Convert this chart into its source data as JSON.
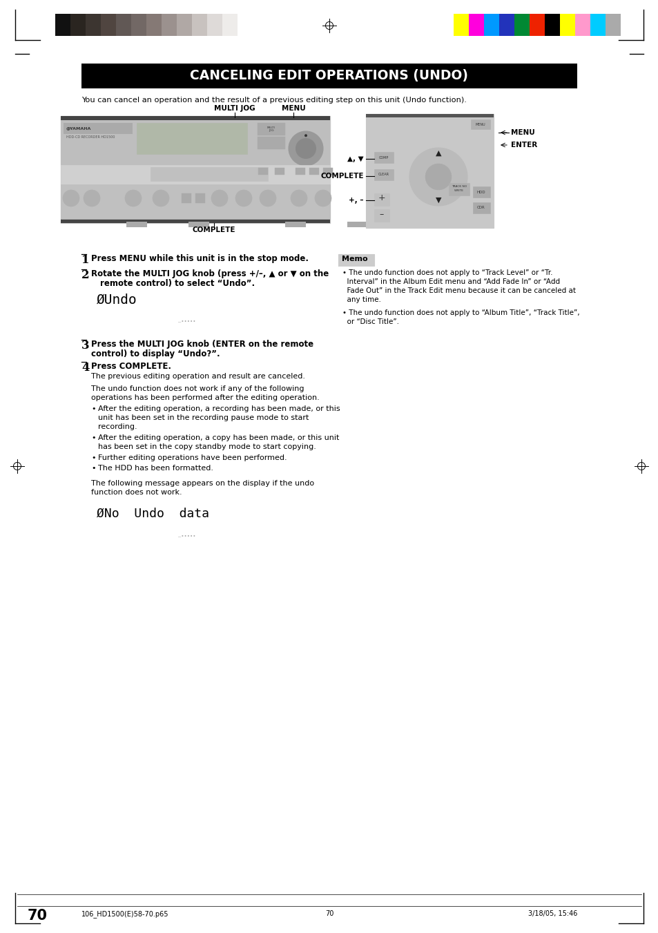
{
  "title": "CANCELING EDIT OPERATIONS (UNDO)",
  "bg_color": "#ffffff",
  "title_bg": "#000000",
  "title_fg": "#ffffff",
  "page_number": "70",
  "intro_text": "You can cancel an operation and the result of a previous editing step on this unit (Undo function).",
  "step1_bold": "Press MENU while this unit is in the stop mode.",
  "step2_bold1": "Rotate the MULTI JOG knob (press +/–, ▲ or ▼ on the",
  "step2_bold2": "remote control) to select “Undo”.",
  "step3_bold1": "Press the MULTI JOG knob (ENTER on the remote",
  "step3_bold2": "control) to display “Undo?”.",
  "step4_bold": "Press COMPLETE.",
  "step4_text1": "The previous editing operation and result are canceled.",
  "step4_text2a": "The undo function does not work if any of the following",
  "step4_text2b": "operations has been performed after the editing operation.",
  "bullet1a": "After the editing operation, a recording has been made, or this",
  "bullet1b": "unit has been set in the recording pause mode to start",
  "bullet1c": "recording.",
  "bullet2a": "After the editing operation, a copy has been made, or this unit",
  "bullet2b": "has been set in the copy standby mode to start copying.",
  "bullet3": "Further editing operations have been performed.",
  "bullet4": "The HDD has been formatted.",
  "step4_text3a": "The following message appears on the display if the undo",
  "step4_text3b": "function does not work.",
  "display1_text": "ØUndo",
  "display2_text": "ØNo  Undo  data",
  "memo_title": "Memo",
  "memo1a": "• The undo function does not apply to “Track Level” or “Tr.",
  "memo1b": "  Interval” in the Album Edit menu and “Add Fade In” or “Add",
  "memo1c": "  Fade Out” in the Track Edit menu because it can be canceled at",
  "memo1d": "  any time.",
  "memo2a": "• The undo function does not apply to “Album Title”, “Track Title”,",
  "memo2b": "  or “Disc Title”.",
  "footer_left": "106_HD1500(E)58-70.p65",
  "footer_center": "70",
  "footer_right": "3/18/05, 15:46",
  "label_multi_jog": "MULTI JOG",
  "label_menu_top": "MENU",
  "label_complete_bottom": "COMPLETE",
  "label_menu_right": "MENU",
  "label_enter_right": "ENTER",
  "label_complete_left": "COMPLETE",
  "label_updown": "▲, ▼",
  "label_plus_minus": "+, –",
  "gray_bars": [
    "#111111",
    "#2a2520",
    "#3c3530",
    "#504540",
    "#615855",
    "#726865",
    "#857975",
    "#9b918e",
    "#b0a8a5",
    "#c8c2bf",
    "#dedad8",
    "#eeecea",
    "#ffffff"
  ],
  "color_bars": [
    "#ffff00",
    "#ff00dd",
    "#0099ff",
    "#2233bb",
    "#008833",
    "#ee2200",
    "#000000",
    "#ffff00",
    "#ff99cc",
    "#00ccff",
    "#aaaaaa"
  ]
}
